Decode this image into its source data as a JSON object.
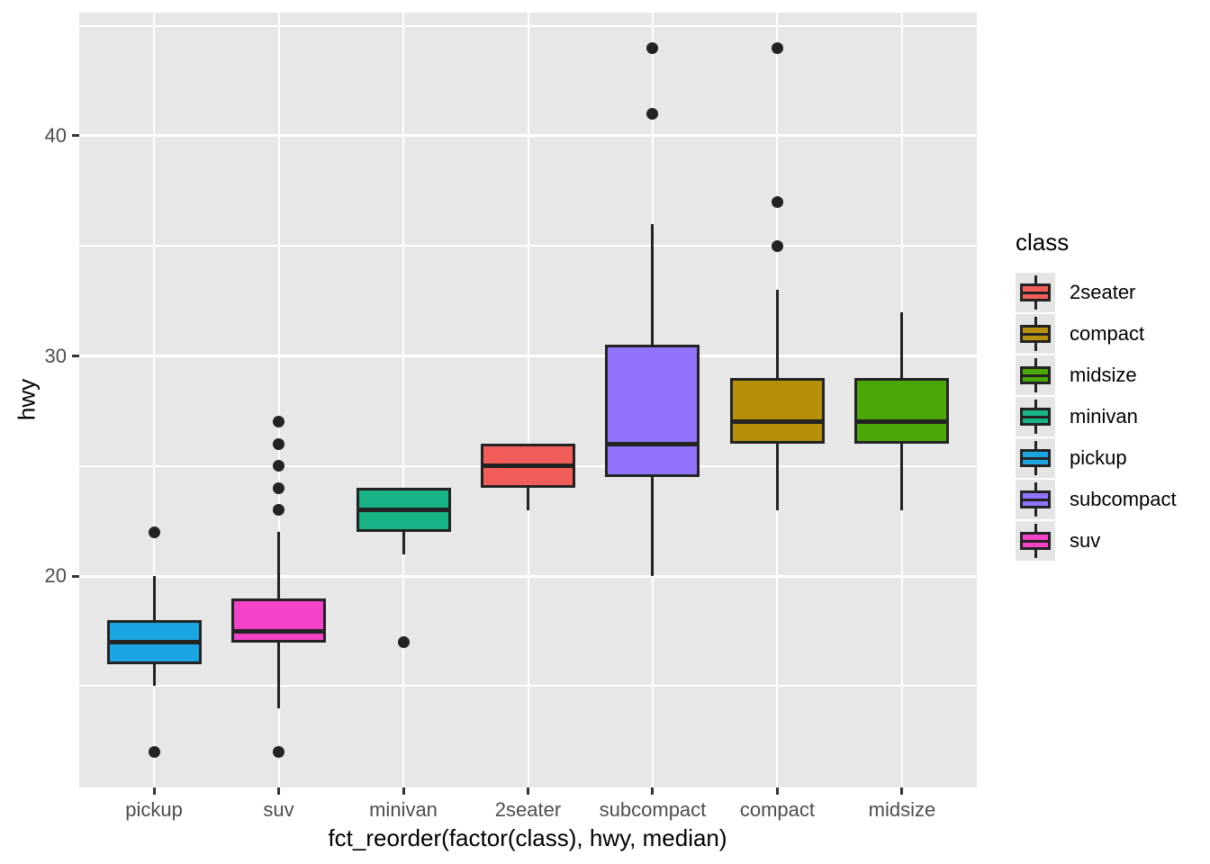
{
  "chart_data": {
    "type": "boxplot",
    "xlabel": "fct_reorder(factor(class), hwy, median)",
    "ylabel": "hwy",
    "ylim": [
      10.4,
      45.6
    ],
    "yticks_major": [
      20,
      30,
      40
    ],
    "yticks_minor": [
      15,
      25,
      35,
      45
    ],
    "grid": "on",
    "legend_position": "right",
    "categories": [
      "pickup",
      "suv",
      "minivan",
      "2seater",
      "subcompact",
      "compact",
      "midsize"
    ],
    "series": [
      {
        "class": "pickup",
        "color": "#1BA5E2",
        "whisker_low": 15,
        "q1": 16,
        "median": 17,
        "q3": 18,
        "whisker_high": 20,
        "outliers": [
          12,
          22
        ]
      },
      {
        "class": "suv",
        "color": "#F442C9",
        "whisker_low": 14,
        "q1": 17,
        "median": 17.5,
        "q3": 19,
        "whisker_high": 22,
        "outliers": [
          12,
          23,
          24,
          25,
          26,
          27
        ]
      },
      {
        "class": "minivan",
        "color": "#18B386",
        "whisker_low": 21,
        "q1": 22,
        "median": 23,
        "q3": 24,
        "whisker_high": 24,
        "outliers": [
          17
        ]
      },
      {
        "class": "2seater",
        "color": "#F25F5A",
        "whisker_low": 23,
        "q1": 24,
        "median": 25,
        "q3": 26,
        "whisker_high": 26,
        "outliers": []
      },
      {
        "class": "subcompact",
        "color": "#9174FB",
        "whisker_low": 20,
        "q1": 24.5,
        "median": 26,
        "q3": 30.5,
        "whisker_high": 36,
        "outliers": [
          41,
          44
        ]
      },
      {
        "class": "compact",
        "color": "#B68F0B",
        "whisker_low": 23,
        "q1": 26,
        "median": 27,
        "q3": 29,
        "whisker_high": 33,
        "outliers": [
          35,
          37,
          44
        ]
      },
      {
        "class": "midsize",
        "color": "#49A807",
        "whisker_low": 23,
        "q1": 26,
        "median": 27,
        "q3": 29,
        "whisker_high": 32,
        "outliers": []
      }
    ],
    "legend": {
      "title": "class",
      "entries": [
        {
          "label": "2seater",
          "color": "#F25F5A"
        },
        {
          "label": "compact",
          "color": "#B68F0B"
        },
        {
          "label": "midsize",
          "color": "#49A807"
        },
        {
          "label": "minivan",
          "color": "#18B386"
        },
        {
          "label": "pickup",
          "color": "#1BA5E2"
        },
        {
          "label": "subcompact",
          "color": "#9174FB"
        },
        {
          "label": "suv",
          "color": "#F442C9"
        }
      ]
    },
    "colors": {
      "panel_bg": "#E7E7E7",
      "gridline": "#FFFFFF",
      "box_outline": "#232323",
      "median_line": "#232323",
      "whisker_line": "#232323",
      "outlier_dot": "#232323",
      "tick_mark": "#333333",
      "tick_label": "#4D4D4D",
      "legend_key_bg": "#E5E5E5"
    }
  }
}
